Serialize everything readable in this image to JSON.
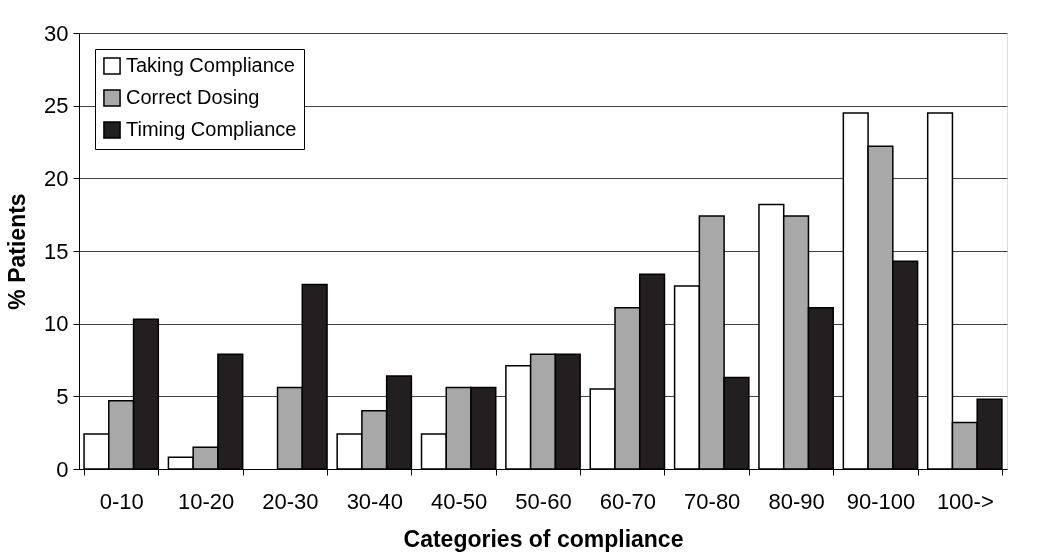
{
  "chart_data": {
    "type": "bar",
    "xlabel": "Categories of compliance",
    "ylabel": "% Patients",
    "categories": [
      "0-10",
      "10-20",
      "20-30",
      "30-40",
      "40-50",
      "50-60",
      "60-70",
      "70-80",
      "80-90",
      "90-100",
      "100->"
    ],
    "series": [
      {
        "name": "Taking Compliance",
        "color": "#ffffff",
        "values": [
          2.4,
          0.8,
          null,
          2.4,
          2.4,
          7.1,
          5.5,
          12.6,
          18.2,
          24.5,
          24.5
        ]
      },
      {
        "name": "Correct Dosing",
        "color": "#a8a8a8",
        "values": [
          4.7,
          1.5,
          5.6,
          4.0,
          5.6,
          7.9,
          11.1,
          17.4,
          17.4,
          22.2,
          3.2
        ]
      },
      {
        "name": "Timing Compliance",
        "color": "#231f20",
        "values": [
          10.3,
          7.9,
          12.7,
          6.4,
          5.6,
          7.9,
          13.4,
          6.3,
          11.1,
          14.3,
          4.8
        ]
      }
    ],
    "ylim": [
      0,
      30
    ],
    "yticks": [
      0,
      5,
      10,
      15,
      20,
      25,
      30
    ],
    "grid": "y",
    "legend": "top left"
  }
}
